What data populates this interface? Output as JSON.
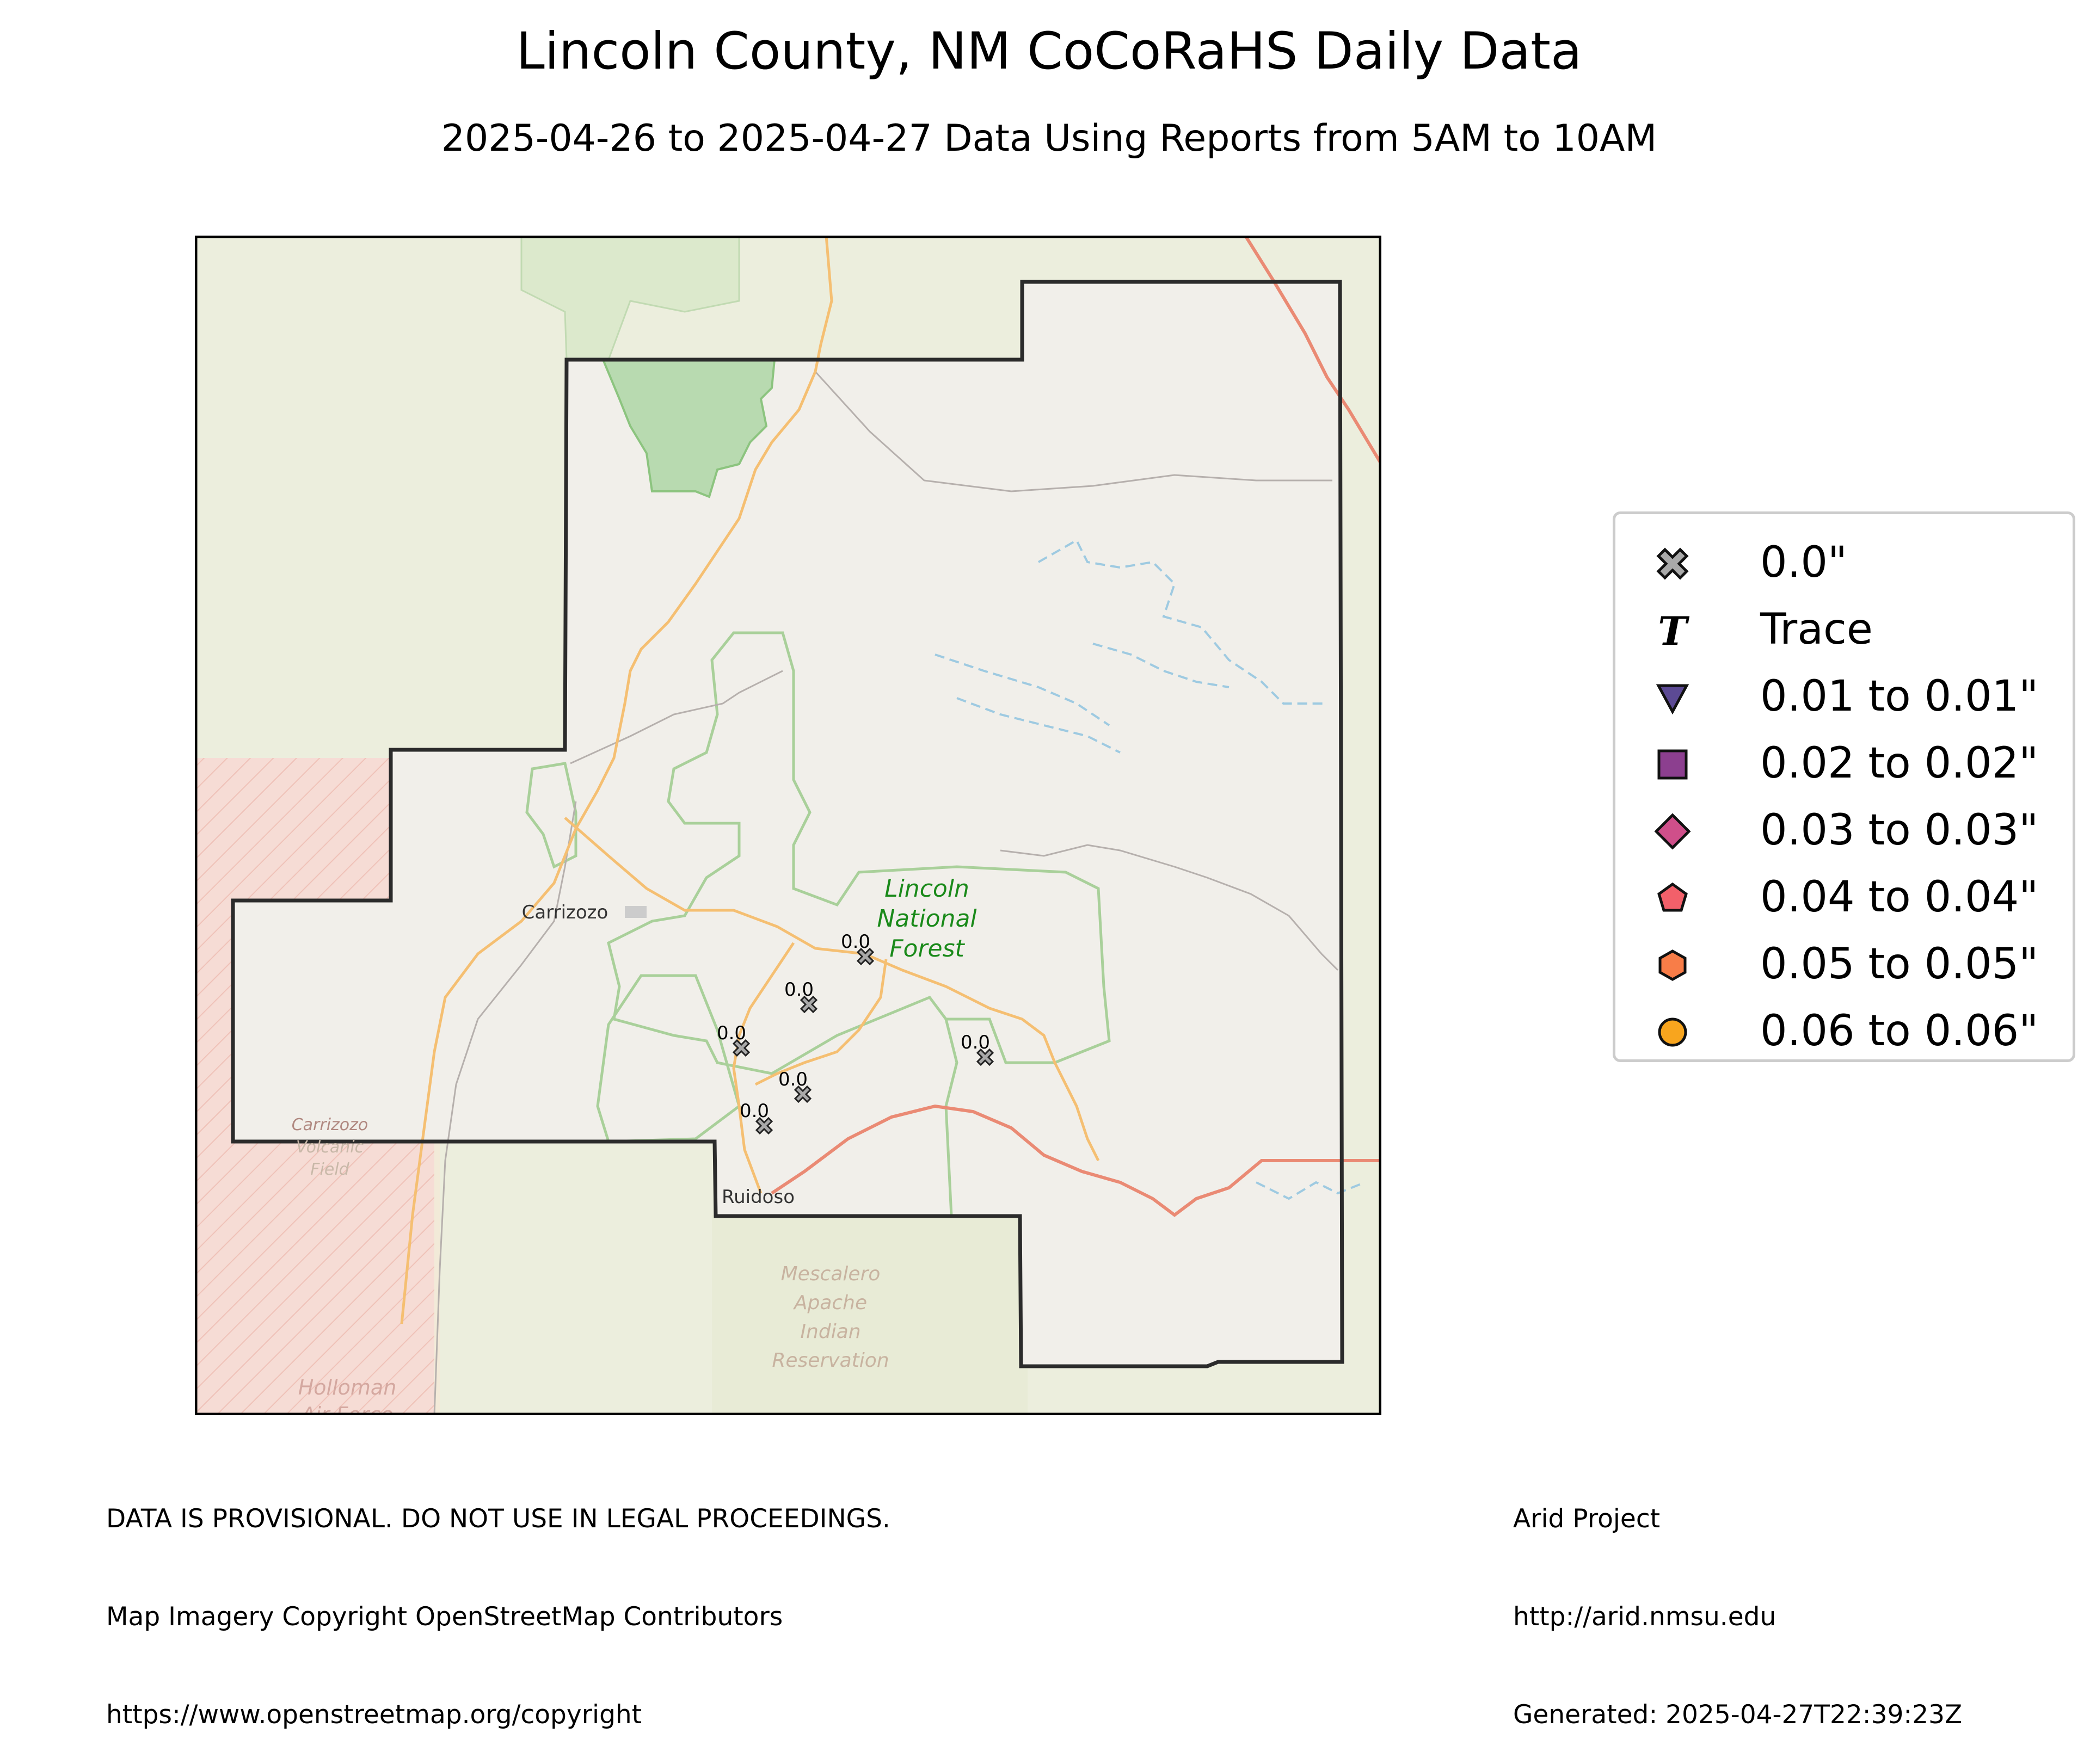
{
  "title": "Lincoln County, NM CoCoRaHS Daily Data",
  "subtitle": "2025-04-26 to 2025-04-27 Data Using Reports from 5AM to 10AM",
  "map": {
    "places": {
      "carrizozo": "Carrizozo",
      "ruidoso": "Ruidoso",
      "lincoln_nf": [
        "Lincoln",
        "National",
        "Forest"
      ],
      "carrizozo_volcanic": [
        "Carrizozo",
        "Volcanic",
        "Field"
      ],
      "mescalero": [
        "Mescalero",
        "Apache",
        "Indian",
        "Reservation"
      ],
      "holloman": [
        "Holloman",
        "Air Force"
      ]
    },
    "stations": [
      {
        "id": "s1",
        "value": "0.0"
      },
      {
        "id": "s2",
        "value": "0.0"
      },
      {
        "id": "s3",
        "value": "0.0"
      },
      {
        "id": "s4",
        "value": "0.0"
      },
      {
        "id": "s5",
        "value": "0.0"
      },
      {
        "id": "s6",
        "value": "0.0"
      }
    ],
    "colors": {
      "county_fill": "#f1efea",
      "background": "#eceedd",
      "forest": "#b0d8a0",
      "restricted": "#f6d8d3",
      "major_road": "#e8826c",
      "road": "#f8c27a",
      "water": "#9ecae1",
      "marker": "#a9a9a9"
    }
  },
  "legend": {
    "items": [
      {
        "label": "0.0\"",
        "symbol": "x-marker-icon",
        "color": "#a9a9a9"
      },
      {
        "label": "Trace",
        "symbol": "trace-t-icon",
        "color": "#000000"
      },
      {
        "label": "0.01 to 0.01\"",
        "symbol": "triangle-down-icon",
        "color": "#5c4a94"
      },
      {
        "label": "0.02 to 0.02\"",
        "symbol": "square-icon",
        "color": "#8c3f8f"
      },
      {
        "label": "0.03 to 0.03\"",
        "symbol": "diamond-icon",
        "color": "#cf4f8a"
      },
      {
        "label": "0.04 to 0.04\"",
        "symbol": "pentagon-icon",
        "color": "#f2606a"
      },
      {
        "label": "0.05 to 0.05\"",
        "symbol": "hexagon-icon",
        "color": "#f87d48"
      },
      {
        "label": "0.06 to 0.06\"",
        "symbol": "circle-icon",
        "color": "#f8a51e"
      }
    ]
  },
  "footer": {
    "disclaimer": "DATA IS PROVISIONAL. DO NOT USE IN LEGAL PROCEEDINGS.",
    "imagery": "Map Imagery Copyright OpenStreetMap Contributors",
    "copyright_url": "https://www.openstreetmap.org/copyright",
    "org": "Arid Project",
    "org_url": "http://arid.nmsu.edu",
    "generated": "Generated: 2025-04-27T22:39:23Z"
  }
}
